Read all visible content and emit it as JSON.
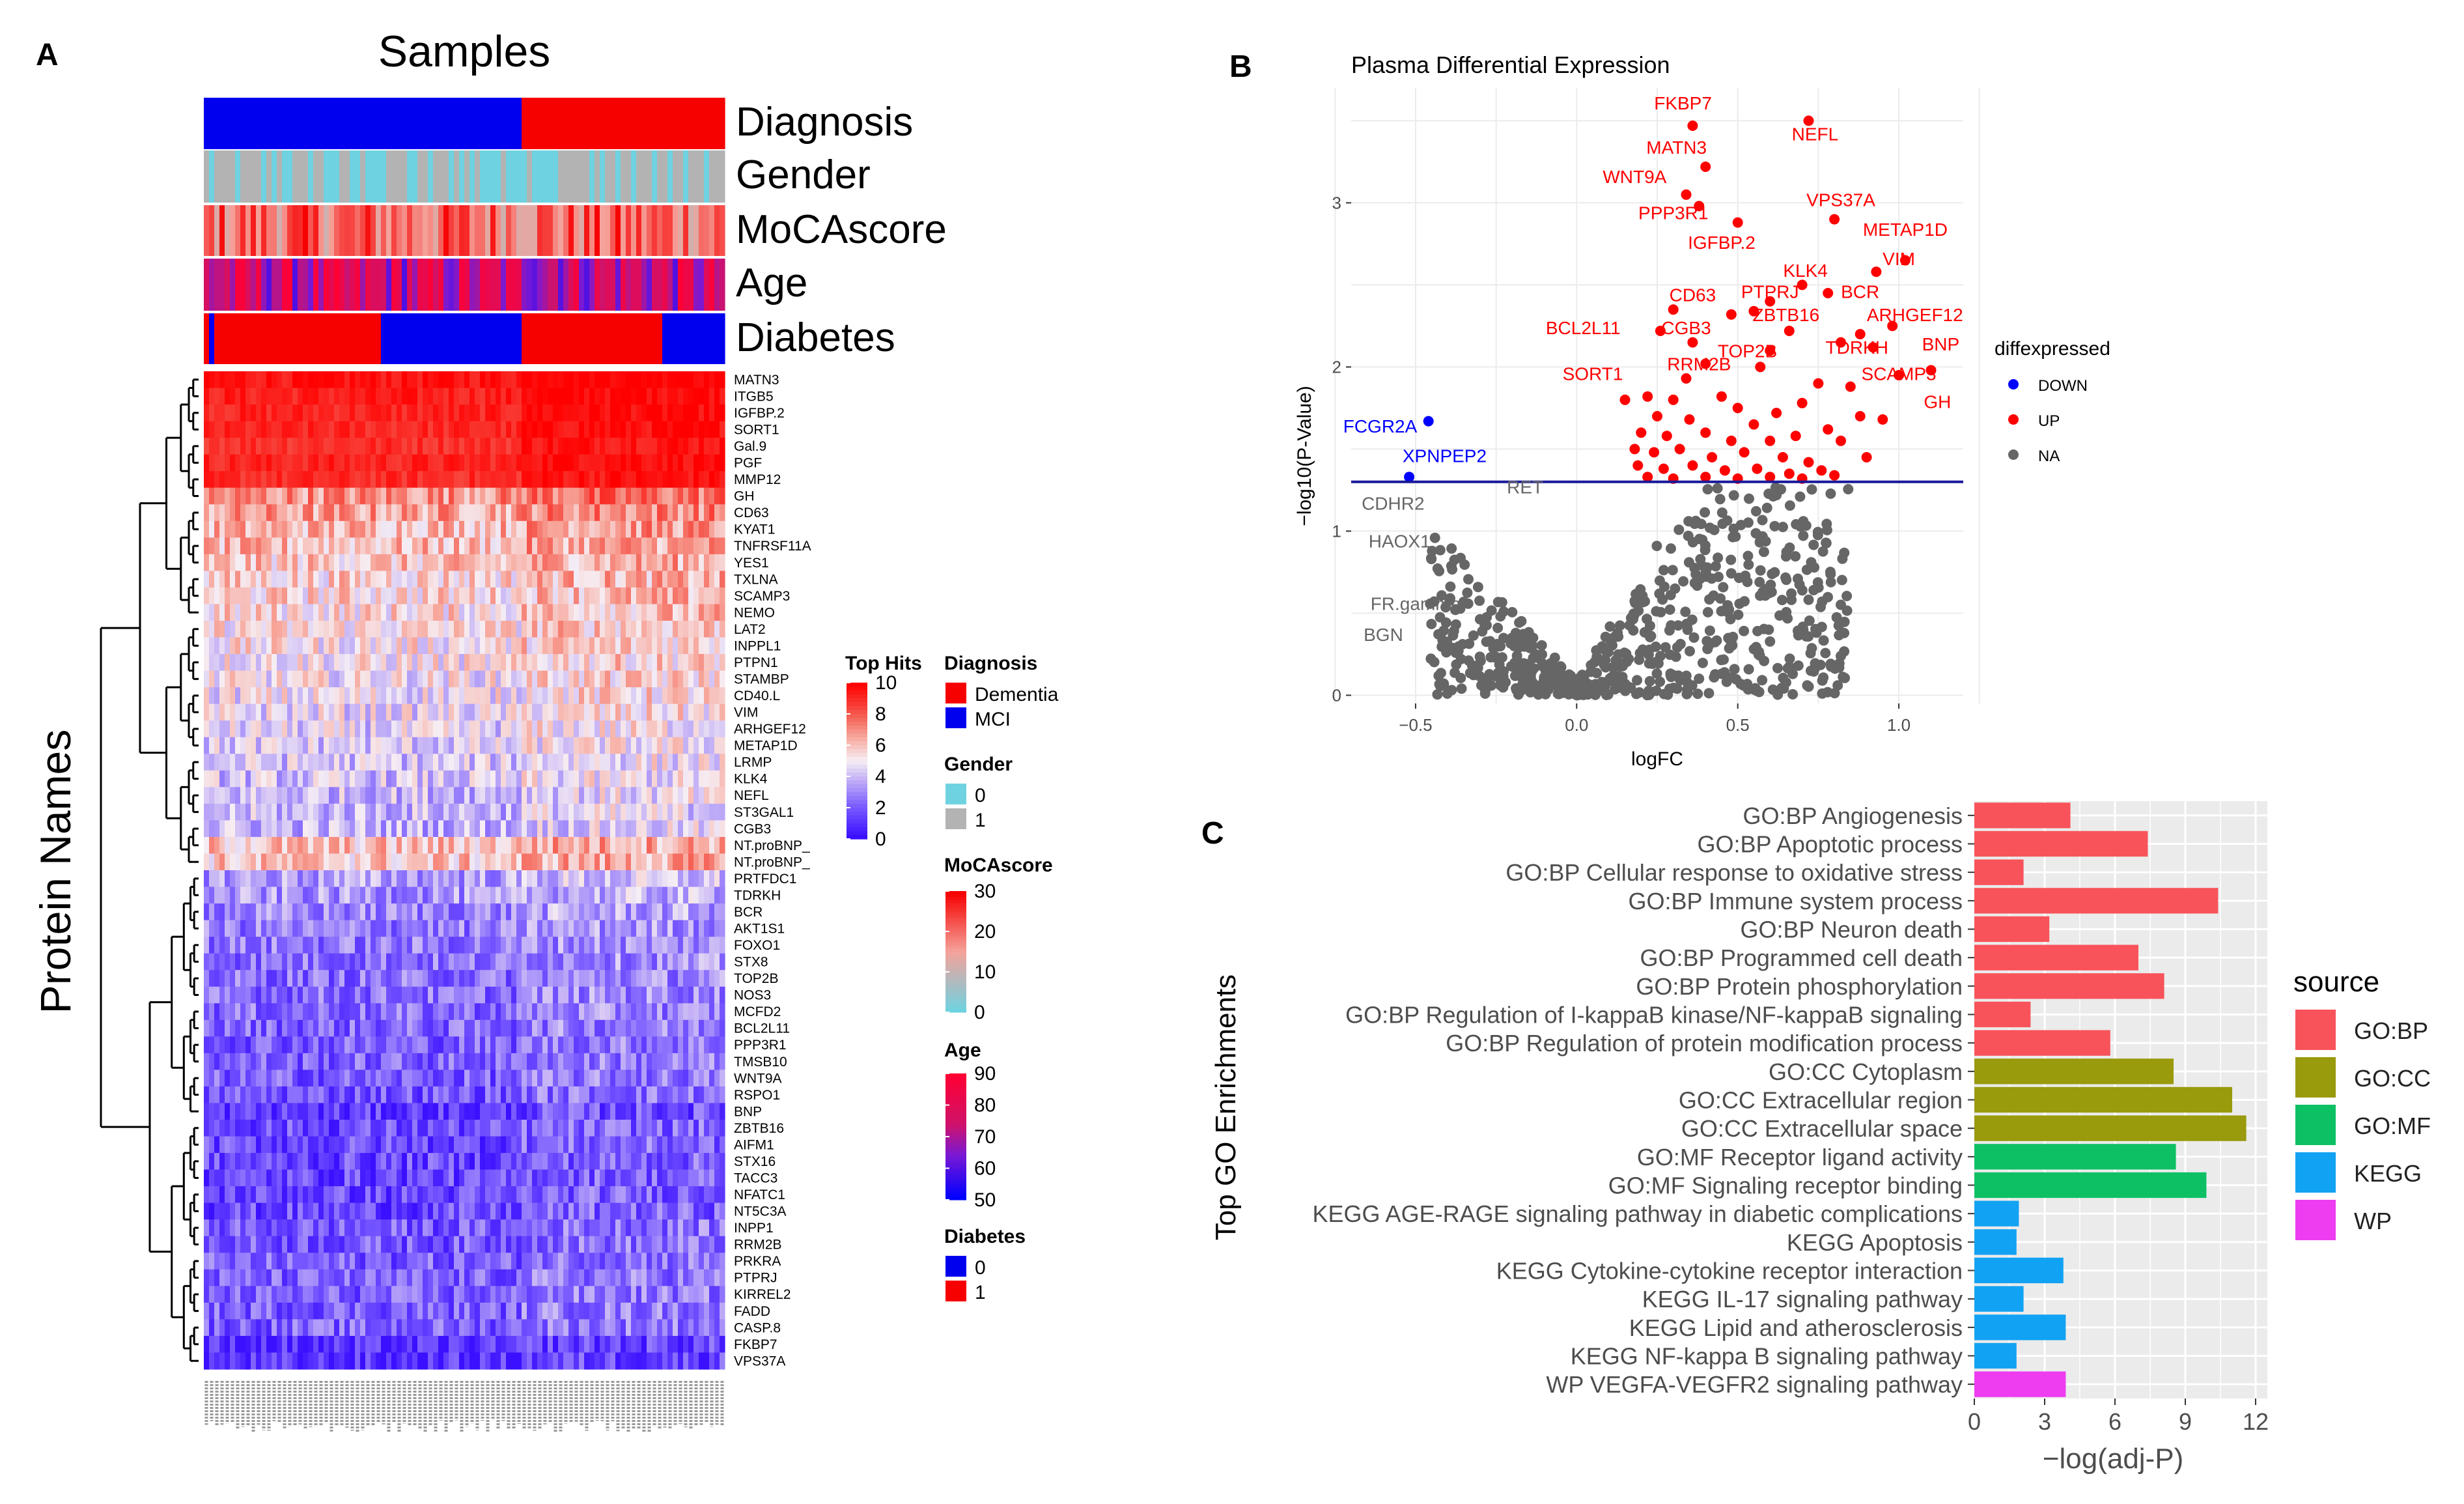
{
  "panel_letters": [
    "A",
    "B",
    "C"
  ],
  "chart_data": [
    {
      "type": "heatmap",
      "panel": "A",
      "title": "Samples",
      "ylabel": "Protein Names",
      "annotation_tracks": [
        "Diagnosis",
        "Gender",
        "MoCAscore",
        "Age",
        "Diabetes"
      ],
      "proteins": [
        "MATN3",
        "ITGB5",
        "IGFBP.2",
        "SORT1",
        "Gal.9",
        "PGF",
        "MMP12",
        "GH",
        "CD63",
        "KYAT1",
        "TNFRSF11A",
        "YES1",
        "TXLNA",
        "SCAMP3",
        "NEMO",
        "LAT2",
        "INPPL1",
        "PTPN1",
        "STAMBP",
        "CD40.L",
        "VIM",
        "ARHGEF12",
        "METAP1D",
        "LRMP",
        "KLK4",
        "NEFL",
        "ST3GAL1",
        "CGB3",
        "NT.proBNP_",
        "NT.proBNP_",
        "PRTFDC1",
        "TDRKH",
        "BCR",
        "AKT1S1",
        "FOXO1",
        "STX8",
        "TOP2B",
        "NOS3",
        "MCFD2",
        "BCL2L11",
        "PPP3R1",
        "TMSB10",
        "WNT9A",
        "RSPO1",
        "BNP",
        "ZBTB16",
        "AIFM1",
        "STX16",
        "TACC3",
        "NFATC1",
        "NT5C3A",
        "INPP1",
        "RRM2B",
        "PRKRA",
        "PTPRJ",
        "KIRREL2",
        "FADD",
        "CASP.8",
        "FKBP7",
        "VPS37A"
      ],
      "row_means": [
        9.6,
        9.3,
        9.2,
        9.1,
        9.0,
        9.2,
        9.0,
        7.0,
        6.6,
        6.2,
        6.0,
        5.8,
        5.6,
        5.5,
        5.4,
        5.3,
        5.1,
        5.0,
        4.9,
        4.8,
        4.6,
        4.4,
        4.3,
        4.2,
        4.1,
        4.0,
        3.9,
        3.8,
        5.9,
        5.8,
        3.4,
        3.1,
        2.8,
        2.6,
        2.5,
        2.4,
        2.3,
        2.3,
        2.2,
        2.1,
        2.0,
        2.0,
        1.9,
        1.8,
        1.0,
        1.5,
        1.5,
        1.4,
        1.4,
        1.4,
        1.4,
        1.8,
        1.8,
        1.9,
        1.9,
        1.9,
        2.0,
        2.0,
        0.7,
        0.8
      ],
      "n_samples": 100,
      "legends": [
        {
          "title": "Top Hits",
          "type": "gradient",
          "ticks": [
            "10",
            "8",
            "6",
            "4",
            "2",
            "0"
          ]
        },
        {
          "title": "Diagnosis",
          "type": "discrete",
          "items": [
            {
              "label": "Dementia",
              "color": "#f60000"
            },
            {
              "label": "MCI",
              "color": "#0000ee"
            }
          ]
        },
        {
          "title": "Gender",
          "type": "discrete",
          "items": [
            {
              "label": "0",
              "color": "#6fd2e0"
            },
            {
              "label": "1",
              "color": "#b3b3b3"
            }
          ]
        },
        {
          "title": "MoCAscore",
          "type": "gradient",
          "ticks": [
            "30",
            "20",
            "10",
            "0"
          ]
        },
        {
          "title": "Age",
          "type": "gradient",
          "ticks": [
            "90",
            "80",
            "70",
            "60",
            "50"
          ]
        },
        {
          "title": "Diabetes",
          "type": "discrete",
          "items": [
            {
              "label": "0",
              "color": "#0000ee"
            },
            {
              "label": "1",
              "color": "#f60000"
            }
          ]
        }
      ]
    },
    {
      "type": "scatter",
      "panel": "B",
      "title": "Plasma Differential Expression",
      "xlabel": "logFC",
      "ylabel": "−log10(P-Value)",
      "xlim": [
        -0.7,
        1.2
      ],
      "ylim": [
        -0.05,
        3.7
      ],
      "xticks": [
        -0.5,
        0.0,
        0.5,
        1.0
      ],
      "xtick_labels": [
        "−0.5",
        "0.0",
        "0.5",
        "1.0"
      ],
      "yticks": [
        0,
        1,
        2,
        3
      ],
      "ytick_labels": [
        "0",
        "1",
        "2",
        "3"
      ],
      "threshold_y": 1.3,
      "legend_title": "diffexpressed",
      "legend_items": [
        {
          "label": "DOWN",
          "color": "#0000ff"
        },
        {
          "label": "UP",
          "color": "#ff0000"
        },
        {
          "label": "NA",
          "color": "#666666"
        }
      ],
      "up_points": [
        [
          0.36,
          3.47
        ],
        [
          0.72,
          3.5
        ],
        [
          0.4,
          3.22
        ],
        [
          0.34,
          3.05
        ],
        [
          0.38,
          2.98
        ],
        [
          0.8,
          2.9
        ],
        [
          0.5,
          2.88
        ],
        [
          1.02,
          2.65
        ],
        [
          0.93,
          2.58
        ],
        [
          0.7,
          2.5
        ],
        [
          0.6,
          2.4
        ],
        [
          0.78,
          2.45
        ],
        [
          0.3,
          2.35
        ],
        [
          0.55,
          2.34
        ],
        [
          0.48,
          2.32
        ],
        [
          0.98,
          2.25
        ],
        [
          0.66,
          2.22
        ],
        [
          0.88,
          2.2
        ],
        [
          0.26,
          2.22
        ],
        [
          0.36,
          2.15
        ],
        [
          0.6,
          2.1
        ],
        [
          0.82,
          2.15
        ],
        [
          0.92,
          2.12
        ],
        [
          0.4,
          2.02
        ],
        [
          0.57,
          2.0
        ],
        [
          1.1,
          1.98
        ],
        [
          1.0,
          1.95
        ],
        [
          0.34,
          1.93
        ],
        [
          0.75,
          1.9
        ],
        [
          0.85,
          1.88
        ],
        [
          0.15,
          1.8
        ],
        [
          0.22,
          1.82
        ],
        [
          0.3,
          1.8
        ],
        [
          0.45,
          1.82
        ],
        [
          0.5,
          1.75
        ],
        [
          0.62,
          1.72
        ],
        [
          0.7,
          1.78
        ],
        [
          0.88,
          1.7
        ],
        [
          0.95,
          1.68
        ],
        [
          0.25,
          1.7
        ],
        [
          0.35,
          1.68
        ],
        [
          0.55,
          1.65
        ],
        [
          0.78,
          1.62
        ],
        [
          0.2,
          1.6
        ],
        [
          0.28,
          1.58
        ],
        [
          0.4,
          1.6
        ],
        [
          0.48,
          1.55
        ],
        [
          0.6,
          1.55
        ],
        [
          0.68,
          1.58
        ],
        [
          0.82,
          1.55
        ],
        [
          0.18,
          1.5
        ],
        [
          0.24,
          1.48
        ],
        [
          0.32,
          1.5
        ],
        [
          0.42,
          1.45
        ],
        [
          0.52,
          1.48
        ],
        [
          0.64,
          1.45
        ],
        [
          0.72,
          1.42
        ],
        [
          0.9,
          1.45
        ],
        [
          0.19,
          1.4
        ],
        [
          0.27,
          1.38
        ],
        [
          0.36,
          1.4
        ],
        [
          0.46,
          1.37
        ],
        [
          0.56,
          1.38
        ],
        [
          0.66,
          1.35
        ],
        [
          0.76,
          1.37
        ],
        [
          0.22,
          1.33
        ],
        [
          0.3,
          1.32
        ],
        [
          0.4,
          1.33
        ],
        [
          0.5,
          1.32
        ],
        [
          0.6,
          1.33
        ],
        [
          0.7,
          1.32
        ],
        [
          0.8,
          1.34
        ]
      ],
      "down_points": [
        [
          -0.46,
          1.67
        ],
        [
          -0.52,
          1.33
        ]
      ],
      "labels": [
        {
          "text": "FKBP7",
          "x": 0.33,
          "y": 3.57,
          "color": "#ff0000"
        },
        {
          "text": "NEFL",
          "x": 0.74,
          "y": 3.38,
          "color": "#ff0000"
        },
        {
          "text": "MATN3",
          "x": 0.31,
          "y": 3.3,
          "color": "#ff0000"
        },
        {
          "text": "WNT9A",
          "x": 0.18,
          "y": 3.12,
          "color": "#ff0000"
        },
        {
          "text": "VPS37A",
          "x": 0.82,
          "y": 2.98,
          "color": "#ff0000"
        },
        {
          "text": "PPP3R1",
          "x": 0.3,
          "y": 2.9,
          "color": "#ff0000"
        },
        {
          "text": "METAP1D",
          "x": 1.02,
          "y": 2.8,
          "color": "#ff0000"
        },
        {
          "text": "IGFBP.2",
          "x": 0.45,
          "y": 2.72,
          "color": "#ff0000"
        },
        {
          "text": "VIM",
          "x": 1.0,
          "y": 2.62,
          "color": "#ff0000"
        },
        {
          "text": "KLK4",
          "x": 0.71,
          "y": 2.55,
          "color": "#ff0000"
        },
        {
          "text": "BCR",
          "x": 0.88,
          "y": 2.42,
          "color": "#ff0000"
        },
        {
          "text": "PTPRJ",
          "x": 0.6,
          "y": 2.42,
          "color": "#ff0000"
        },
        {
          "text": "CD63",
          "x": 0.36,
          "y": 2.4,
          "color": "#ff0000"
        },
        {
          "text": "ZBTB16",
          "x": 0.65,
          "y": 2.28,
          "color": "#ff0000"
        },
        {
          "text": "ARHGEF12",
          "x": 1.05,
          "y": 2.28,
          "color": "#ff0000"
        },
        {
          "text": "BCL2L11",
          "x": 0.02,
          "y": 2.2,
          "color": "#ff0000"
        },
        {
          "text": "CGB3",
          "x": 0.34,
          "y": 2.2,
          "color": "#ff0000"
        },
        {
          "text": "BNP",
          "x": 1.13,
          "y": 2.1,
          "color": "#ff0000"
        },
        {
          "text": "TOP2B",
          "x": 0.53,
          "y": 2.06,
          "color": "#ff0000"
        },
        {
          "text": "TDRKH",
          "x": 0.87,
          "y": 2.08,
          "color": "#ff0000"
        },
        {
          "text": "RRM2B",
          "x": 0.38,
          "y": 1.98,
          "color": "#ff0000"
        },
        {
          "text": "SCAMP3",
          "x": 1.0,
          "y": 1.92,
          "color": "#ff0000"
        },
        {
          "text": "SORT1",
          "x": 0.05,
          "y": 1.92,
          "color": "#ff0000"
        },
        {
          "text": "GH",
          "x": 1.12,
          "y": 1.75,
          "color": "#ff0000"
        },
        {
          "text": "FCGR2A",
          "x": -0.61,
          "y": 1.6,
          "color": "#0000ff"
        },
        {
          "text": "XPNPEP2",
          "x": -0.41,
          "y": 1.42,
          "color": "#0000ff"
        },
        {
          "text": "RET",
          "x": -0.16,
          "y": 1.23,
          "color": "#666666"
        },
        {
          "text": "CDHR2",
          "x": -0.57,
          "y": 1.13,
          "color": "#666666"
        },
        {
          "text": "HAOX1",
          "x": -0.55,
          "y": 0.9,
          "color": "#666666"
        },
        {
          "text": "FR.gamma",
          "x": -0.5,
          "y": 0.52,
          "color": "#666666"
        },
        {
          "text": "BGN",
          "x": -0.6,
          "y": 0.33,
          "color": "#666666"
        }
      ]
    },
    {
      "type": "bar",
      "panel": "C",
      "orientation": "horizontal",
      "xlabel": "−log(adj-P)",
      "ylabel": "Top GO Enrichments",
      "xlim": [
        0,
        12.5
      ],
      "xticks": [
        0,
        3,
        6,
        9,
        12
      ],
      "xtick_labels": [
        "0",
        "3",
        "6",
        "9",
        "12"
      ],
      "categories": [
        "GO:BP Angiogenesis",
        "GO:BP Apoptotic process",
        "GO:BP Cellular response to oxidative stress",
        "GO:BP Immune system process",
        "GO:BP Neuron death",
        "GO:BP Programmed cell death",
        "GO:BP Protein phosphorylation",
        "GO:BP Regulation of I-kappaB kinase/NF-kappaB signaling",
        "GO:BP Regulation of protein modification process",
        "GO:CC Cytoplasm",
        "GO:CC Extracellular region",
        "GO:CC Extracellular space",
        "GO:MF Receptor ligand activity",
        "GO:MF Signaling receptor binding",
        "KEGG AGE-RAGE signaling pathway in diabetic complications",
        "KEGG Apoptosis",
        "KEGG Cytokine-cytokine receptor interaction",
        "KEGG IL-17 signaling pathway",
        "KEGG Lipid and atherosclerosis",
        "KEGG NF-kappa B signaling pathway",
        "WP VEGFA-VEGFR2 signaling pathway"
      ],
      "values": [
        4.1,
        7.4,
        2.1,
        10.4,
        3.2,
        7.0,
        8.1,
        2.4,
        5.8,
        8.5,
        11.0,
        11.6,
        8.6,
        9.9,
        1.9,
        1.8,
        3.8,
        2.1,
        3.9,
        1.8,
        3.9
      ],
      "sources": [
        "GO:BP",
        "GO:BP",
        "GO:BP",
        "GO:BP",
        "GO:BP",
        "GO:BP",
        "GO:BP",
        "GO:BP",
        "GO:BP",
        "GO:CC",
        "GO:CC",
        "GO:CC",
        "GO:MF",
        "GO:MF",
        "KEGG",
        "KEGG",
        "KEGG",
        "KEGG",
        "KEGG",
        "KEGG",
        "WP"
      ],
      "legend_title": "source",
      "legend_items": [
        {
          "label": "GO:BP",
          "color": "#f8535a"
        },
        {
          "label": "GO:CC",
          "color": "#999a0c"
        },
        {
          "label": "GO:MF",
          "color": "#0ec064"
        },
        {
          "label": "KEGG",
          "color": "#12a2f3"
        },
        {
          "label": "WP",
          "color": "#ee3cf0"
        }
      ]
    }
  ]
}
